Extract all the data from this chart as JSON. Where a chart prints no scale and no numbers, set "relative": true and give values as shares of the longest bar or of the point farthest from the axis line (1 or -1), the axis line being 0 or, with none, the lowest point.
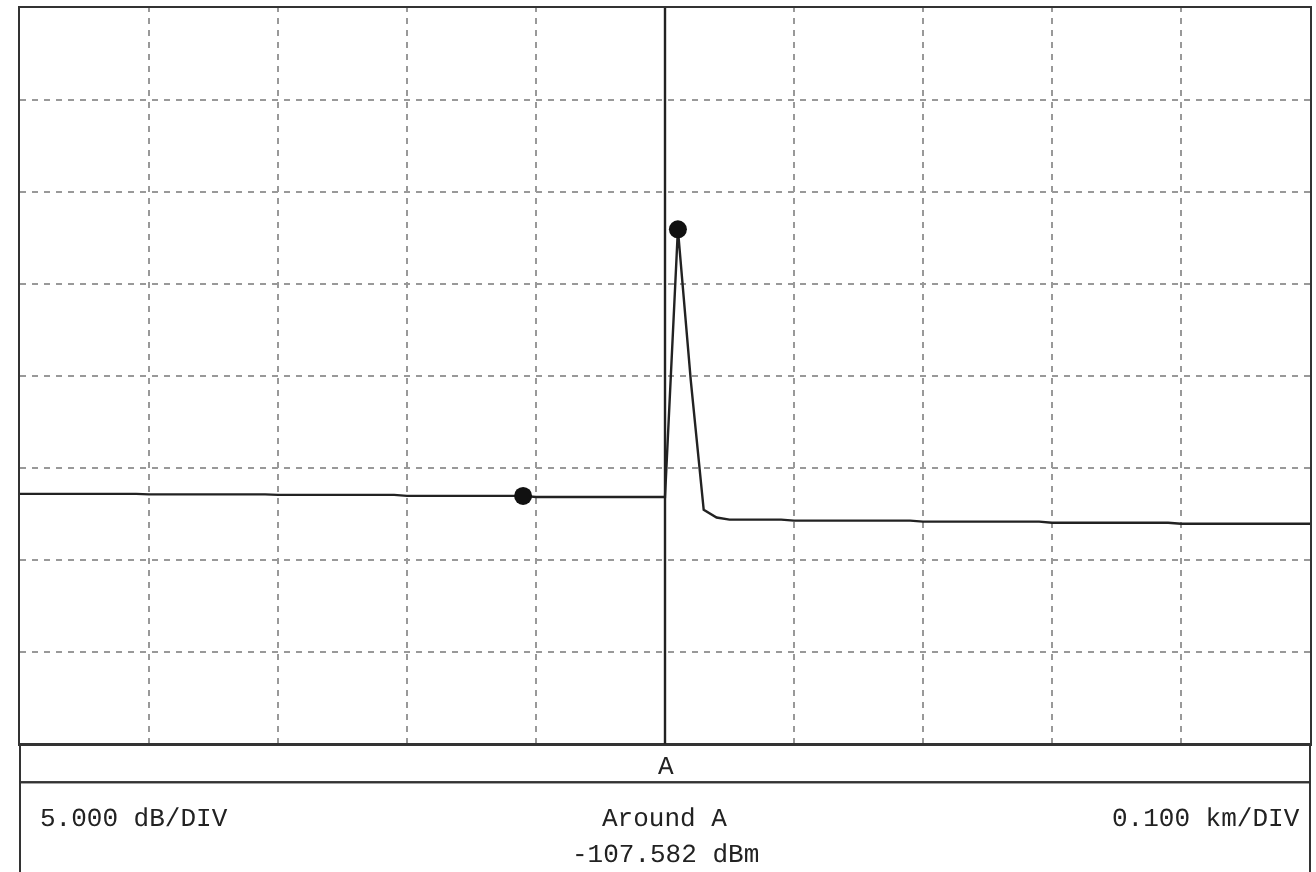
{
  "chart_data": {
    "type": "line",
    "relative": true,
    "grid": true,
    "line_style": "solid",
    "color": "#222222",
    "categories": [
      null,
      null,
      null,
      null,
      null,
      null,
      null,
      null,
      null,
      null,
      null,
      null,
      null,
      null,
      null,
      null,
      null,
      null,
      null,
      null,
      null,
      null,
      null,
      null,
      null,
      null,
      null,
      null,
      null,
      null,
      null,
      null,
      null,
      null,
      null,
      null,
      null,
      null,
      null,
      null,
      null,
      null,
      null,
      null,
      null,
      null,
      null,
      null,
      null,
      null,
      null,
      null,
      null,
      null,
      null,
      null,
      null,
      null,
      null,
      null,
      null,
      null,
      null,
      null,
      null,
      null,
      null,
      null,
      null,
      null,
      null,
      null,
      null,
      null,
      null,
      null,
      null,
      null,
      null,
      null,
      null,
      null,
      null,
      null,
      null,
      null,
      null,
      null,
      null,
      null,
      null,
      null,
      null,
      null,
      null,
      null,
      null,
      null,
      null,
      null,
      null
    ],
    "values": [
      0.486,
      0.486,
      0.486,
      0.486,
      0.486,
      0.486,
      0.486,
      0.486,
      0.486,
      0.486,
      0.485,
      0.485,
      0.485,
      0.485,
      0.485,
      0.485,
      0.485,
      0.485,
      0.485,
      0.485,
      0.484,
      0.484,
      0.484,
      0.484,
      0.484,
      0.484,
      0.484,
      0.484,
      0.484,
      0.484,
      0.482,
      0.482,
      0.482,
      0.482,
      0.482,
      0.482,
      0.482,
      0.482,
      0.482,
      0.482,
      0.48,
      0.48,
      0.48,
      0.48,
      0.48,
      0.48,
      0.48,
      0.48,
      0.48,
      0.48,
      0.48,
      1,
      0.706,
      0.455,
      0.44,
      0.436,
      0.436,
      0.436,
      0.436,
      0.436,
      0.434,
      0.434,
      0.434,
      0.434,
      0.434,
      0.434,
      0.434,
      0.434,
      0.434,
      0.434,
      0.432,
      0.432,
      0.432,
      0.432,
      0.432,
      0.432,
      0.432,
      0.432,
      0.432,
      0.432,
      0.43,
      0.43,
      0.43,
      0.43,
      0.43,
      0.43,
      0.43,
      0.43,
      0.43,
      0.43,
      0.428,
      0.428,
      0.428,
      0.428,
      0.428,
      0.428,
      0.428,
      0.428,
      0.428,
      0.428,
      0.428
    ],
    "annotations": [
      "A",
      "5.000 dB/DIV",
      "Around A",
      "-107.582 dBm",
      "0.100 km/DIV"
    ]
  }
}
